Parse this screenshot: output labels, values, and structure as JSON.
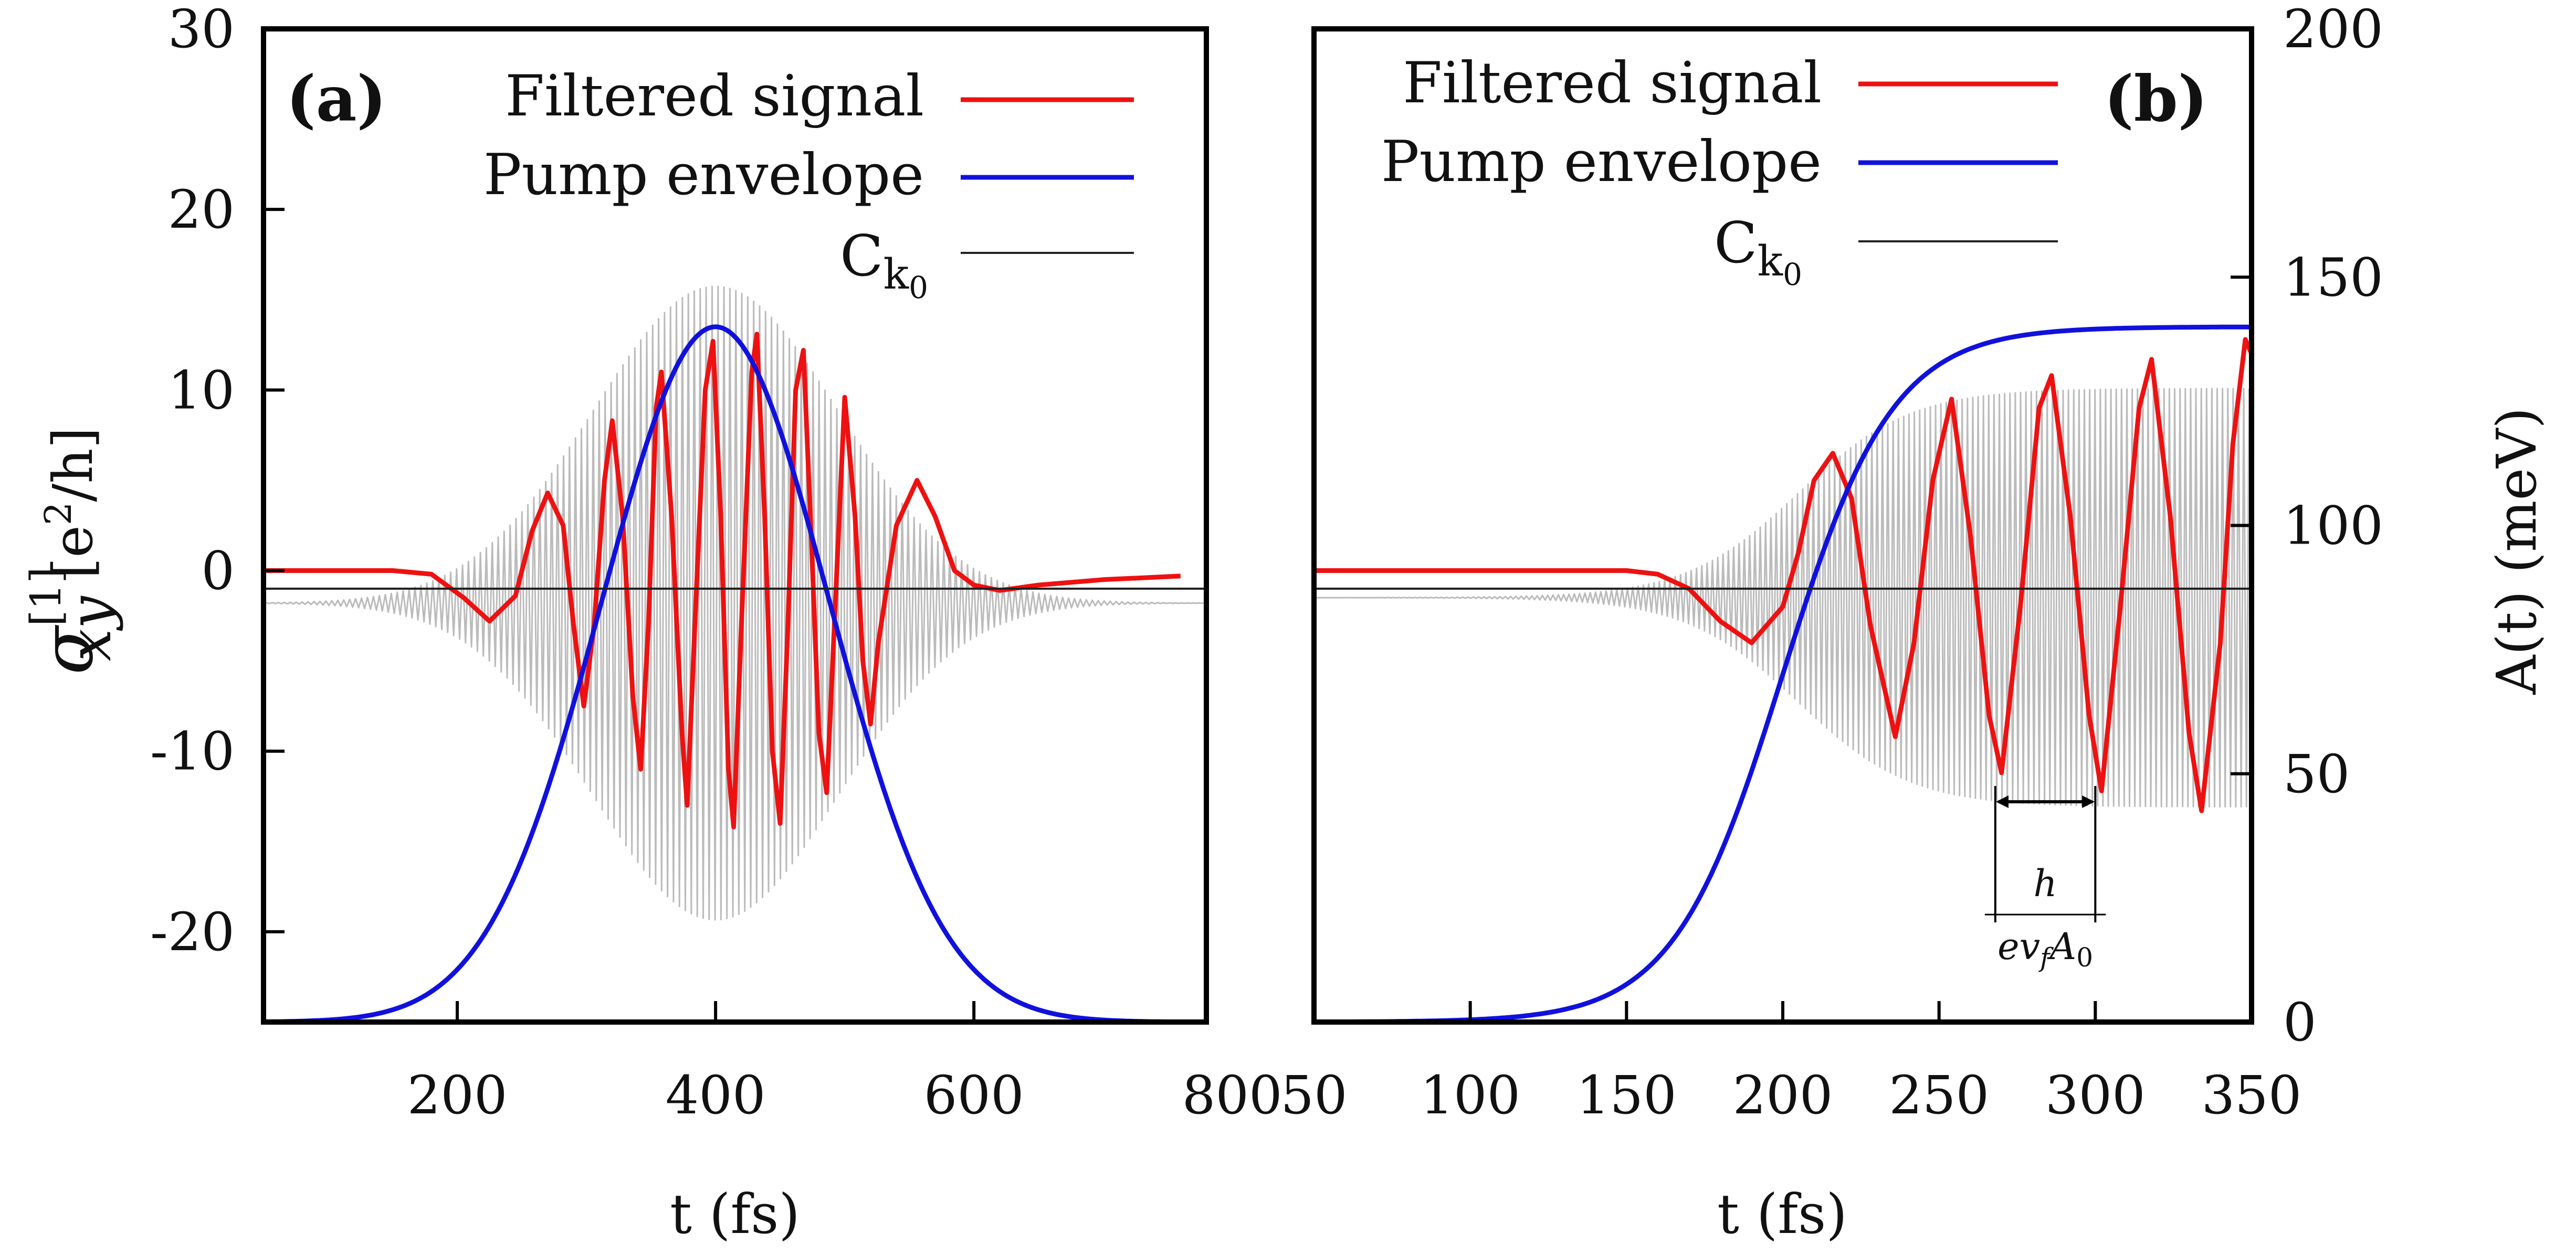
{
  "chart_data": [
    {
      "id": "a",
      "type": "line",
      "panel_label": "(a)",
      "xlabel": "t (fs)",
      "ylabel": "σ_xy^[1] [e²/h]",
      "ylabel_parts": {
        "sigma": "σ",
        "sup": "[1]",
        "sub": "xy",
        "unit": " [e",
        "unit_sup": "2",
        "unit_end": "/h]"
      },
      "xlim": [
        50,
        780
      ],
      "ylim": [
        -25,
        30
      ],
      "xticks": [
        200,
        400,
        600,
        800
      ],
      "xtick_labels": [
        "200",
        "400",
        "600",
        "800"
      ],
      "yticks": [
        -20,
        -10,
        0,
        10,
        20,
        30
      ],
      "ytick_labels": [
        "-20",
        "-10",
        "0",
        "10",
        "20",
        "30"
      ],
      "legend_position": "top-right",
      "legend": [
        {
          "label": "Filtered signal",
          "color": "#ee1111"
        },
        {
          "label": "Pump envelope",
          "color": "#1111dd"
        },
        {
          "label": "C",
          "sub": "k",
          "subsub": "0",
          "color": "#222222"
        }
      ],
      "ck0_level": -1,
      "series": [
        {
          "name": "Raw signal",
          "color": "#bbbbbb",
          "model": "modulated",
          "t0": 400,
          "sigma": 95,
          "period": 4.6,
          "amplitude": 24,
          "center_offset": -1.8
        },
        {
          "name": "Filtered signal",
          "color": "#ee1111",
          "points": [
            [
              50,
              0
            ],
            [
              150,
              0
            ],
            [
              180,
              -0.2
            ],
            [
              205,
              -1.5
            ],
            [
              225,
              -2.8
            ],
            [
              245,
              -1.4
            ],
            [
              258,
              2.2
            ],
            [
              270,
              4.3
            ],
            [
              282,
              2.5
            ],
            [
              290,
              -3
            ],
            [
              298,
              -7.5
            ],
            [
              306,
              -3
            ],
            [
              314,
              5
            ],
            [
              320,
              8.3
            ],
            [
              328,
              3
            ],
            [
              336,
              -7
            ],
            [
              342,
              -11
            ],
            [
              348,
              -3
            ],
            [
              354,
              9
            ],
            [
              358,
              11
            ],
            [
              366,
              3
            ],
            [
              374,
              -9
            ],
            [
              378,
              -13
            ],
            [
              384,
              -3
            ],
            [
              392,
              10
            ],
            [
              398,
              12.7
            ],
            [
              404,
              3
            ],
            [
              410,
              -11
            ],
            [
              414,
              -14.2
            ],
            [
              420,
              -3
            ],
            [
              428,
              11
            ],
            [
              432,
              13.1
            ],
            [
              438,
              3
            ],
            [
              444,
              -10
            ],
            [
              450,
              -14
            ],
            [
              456,
              -3
            ],
            [
              462,
              10
            ],
            [
              468,
              12.2
            ],
            [
              474,
              2
            ],
            [
              480,
              -9
            ],
            [
              486,
              -12.3
            ],
            [
              492,
              -3
            ],
            [
              500,
              9.6
            ],
            [
              508,
              3
            ],
            [
              514,
              -5
            ],
            [
              520,
              -8.5
            ],
            [
              526,
              -4
            ],
            [
              540,
              2.5
            ],
            [
              556,
              5
            ],
            [
              570,
              3
            ],
            [
              585,
              0
            ],
            [
              600,
              -0.8
            ],
            [
              620,
              -1.1
            ],
            [
              650,
              -0.8
            ],
            [
              700,
              -0.5
            ],
            [
              760,
              -0.3
            ]
          ]
        },
        {
          "name": "Pump envelope",
          "color": "#1111dd",
          "model": "gaussian",
          "t0": 400,
          "sigma": 88,
          "amplitude": 38.5,
          "baseline": -25
        }
      ]
    },
    {
      "id": "b",
      "type": "line",
      "panel_label": "(b)",
      "xlabel": "t (fs)",
      "ylabel": "A(t) (meV)",
      "xlim": [
        50,
        350
      ],
      "ylim": [
        -25,
        30
      ],
      "ylim_right": [
        0,
        200
      ],
      "xticks": [
        50,
        100,
        150,
        200,
        250,
        300,
        350
      ],
      "xtick_labels": [
        "50",
        "100",
        "150",
        "200",
        "250",
        "300",
        "350"
      ],
      "yticks_right": [
        0,
        50,
        100,
        150,
        200
      ],
      "ytick_labels_right": [
        "0",
        "50",
        "100",
        "150",
        "200"
      ],
      "legend_position": "top-right",
      "legend": [
        {
          "label": "Filtered signal",
          "color": "#ee1111"
        },
        {
          "label": "Pump envelope",
          "color": "#1111dd"
        },
        {
          "label": "C",
          "sub": "k",
          "subsub": "0",
          "color": "#222222"
        }
      ],
      "ck0_level": -1,
      "annotation": {
        "x_start": 268,
        "x_end": 300,
        "y": -12.8,
        "numerator": "h",
        "denominator": "ev",
        "den_sub": "f",
        "den_tail": "A",
        "den_tail_sub": "0"
      },
      "series": [
        {
          "name": "Raw signal",
          "color": "#bbbbbb",
          "model": "step_oscillation",
          "t0": 205,
          "period": 1.7,
          "amplitude": 22,
          "center_offset": -1.5
        },
        {
          "name": "Filtered signal",
          "color": "#ee1111",
          "points": [
            [
              50,
              0
            ],
            [
              150,
              0
            ],
            [
              160,
              -0.2
            ],
            [
              170,
              -1
            ],
            [
              180,
              -2.8
            ],
            [
              190,
              -4
            ],
            [
              200,
              -2
            ],
            [
              205,
              1
            ],
            [
              210,
              5
            ],
            [
              216,
              6.5
            ],
            [
              222,
              4
            ],
            [
              228,
              -3
            ],
            [
              236,
              -9.2
            ],
            [
              242,
              -4
            ],
            [
              248,
              5
            ],
            [
              254,
              9.5
            ],
            [
              260,
              2
            ],
            [
              266,
              -8
            ],
            [
              270,
              -11.2
            ],
            [
              276,
              -2
            ],
            [
              282,
              9
            ],
            [
              286,
              10.8
            ],
            [
              292,
              3
            ],
            [
              298,
              -8
            ],
            [
              302,
              -12.2
            ],
            [
              308,
              -2
            ],
            [
              314,
              9
            ],
            [
              318,
              11.7
            ],
            [
              324,
              3
            ],
            [
              330,
              -9
            ],
            [
              334,
              -13.3
            ],
            [
              340,
              -4
            ],
            [
              344,
              7
            ],
            [
              348,
              12.8
            ],
            [
              350,
              12
            ]
          ]
        },
        {
          "name": "Pump envelope",
          "color": "#1111dd",
          "axis": "right",
          "model": "logistic",
          "t0": 200,
          "width": 17.5,
          "amplitude": 140
        }
      ]
    }
  ]
}
